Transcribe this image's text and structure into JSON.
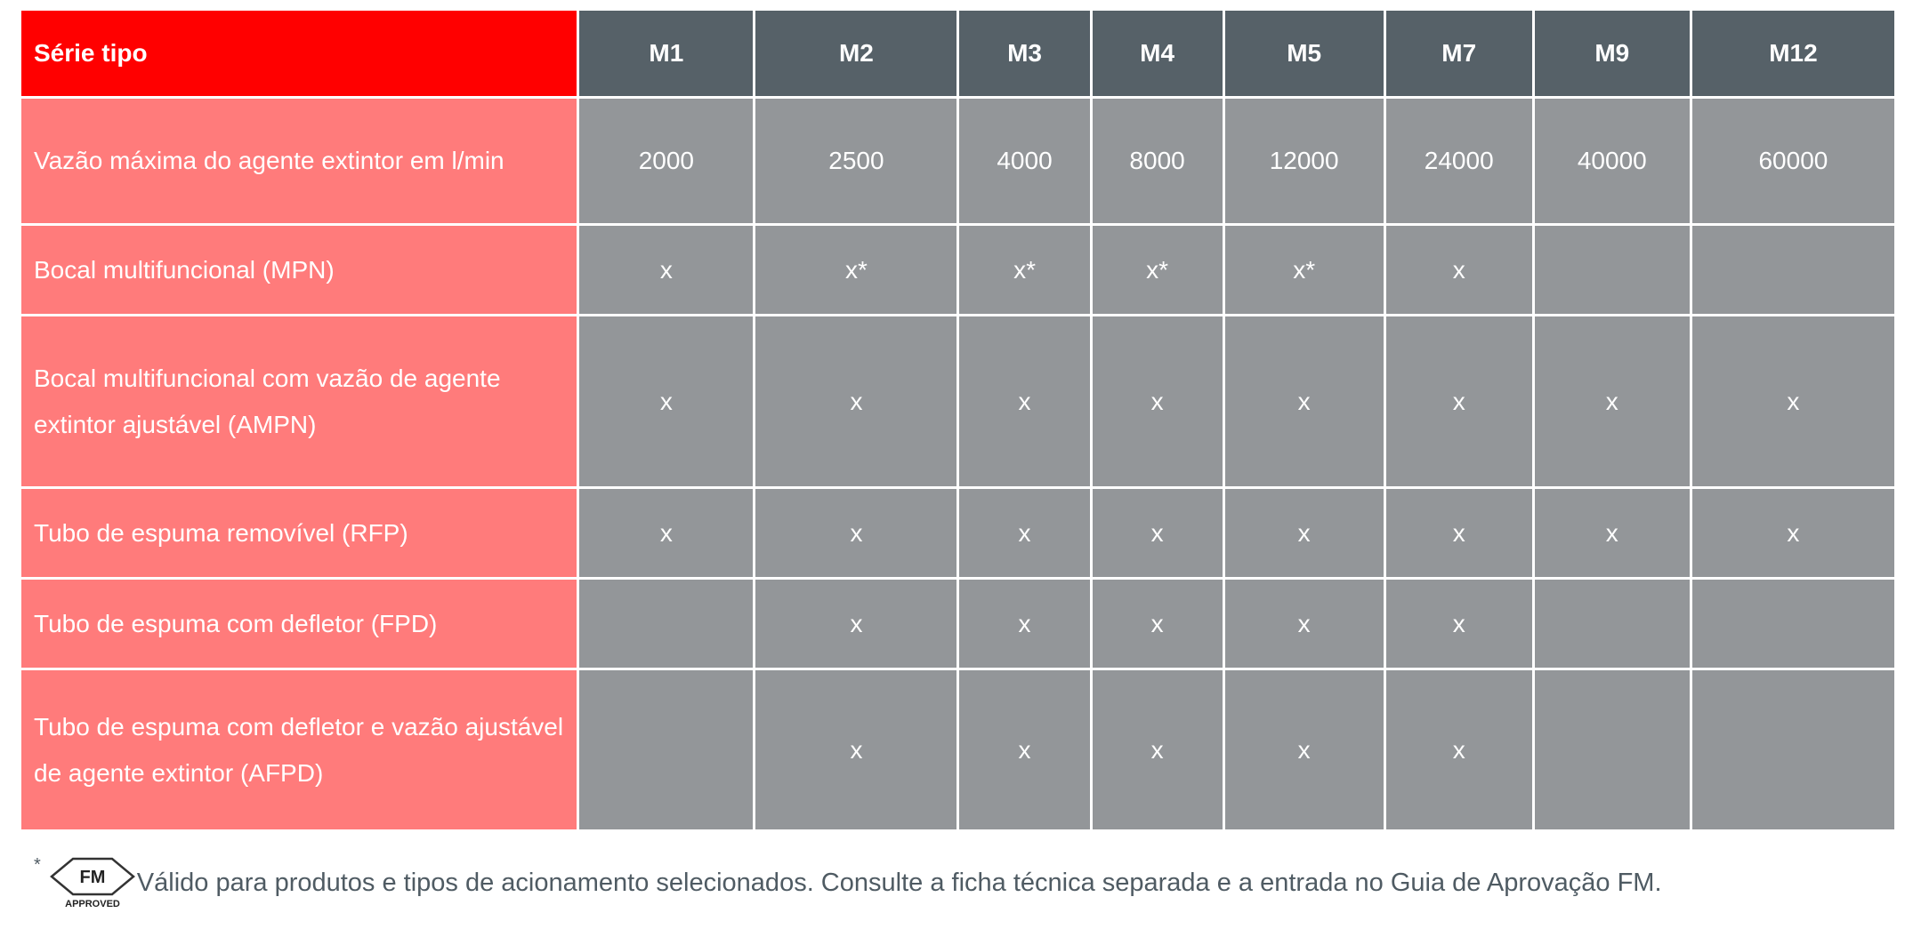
{
  "table": {
    "header": {
      "label": "Série tipo",
      "columns": [
        "M1",
        "M2",
        "M3",
        "M4",
        "M5",
        "M7",
        "M9",
        "M12"
      ]
    },
    "rows": [
      {
        "label": "Vazão máxima do agente extintor em l/min",
        "cells": [
          "2000",
          "2500",
          "4000",
          "8000",
          "12000",
          "24000",
          "40000",
          "60000"
        ]
      },
      {
        "label": "Bocal multifuncional (MPN)",
        "cells": [
          "x",
          "x*",
          "x*",
          "x*",
          "x*",
          "x",
          null,
          null
        ]
      },
      {
        "label": "Bocal multifuncional com vazão de agente extintor ajustável (AMPN)",
        "cells": [
          "x",
          "x",
          "x",
          "x",
          "x",
          "x",
          "x",
          "x"
        ]
      },
      {
        "label": "Tubo de espuma removível (RFP)",
        "cells": [
          "x",
          "x",
          "x",
          "x",
          "x",
          "x",
          "x",
          "x"
        ]
      },
      {
        "label": "Tubo de espuma com defletor (FPD)",
        "cells": [
          null,
          "x",
          "x",
          "x",
          "x",
          "x",
          null,
          null
        ]
      },
      {
        "label": "Tubo de espuma com defletor e vazão ajustável de agente extintor (AFPD)",
        "cells": [
          null,
          "x",
          "x",
          "x",
          "x",
          "x",
          null,
          null
        ]
      }
    ]
  },
  "footnote": {
    "marker": "*",
    "logo": "FM",
    "logo_caption": "APPROVED",
    "text": "Válido para produtos e tipos de acionamento selecionados. Consulte a ficha técnica separada e a entrada no Guia de Aprovação FM."
  }
}
